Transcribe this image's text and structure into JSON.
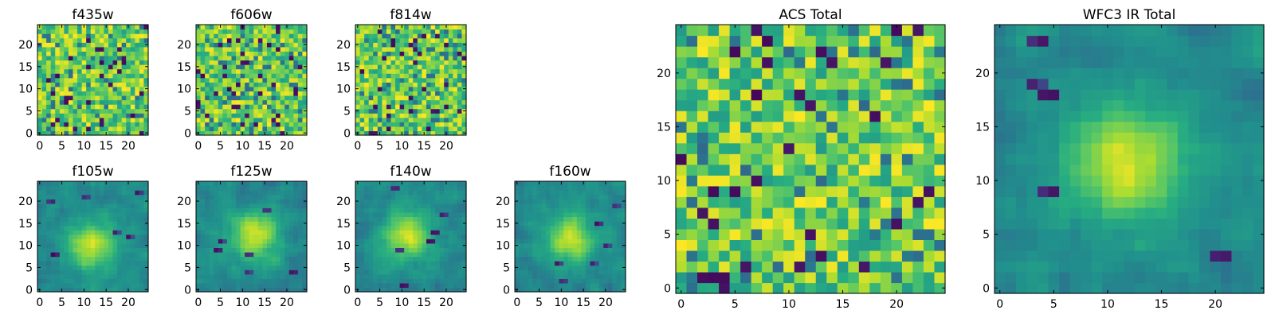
{
  "chart_data": [
    {
      "type": "heatmap",
      "title": "f435w",
      "colormap": "viridis",
      "grid": false,
      "size": [
        25,
        25
      ],
      "xlim": [
        -0.5,
        24.5
      ],
      "ylim": [
        -0.5,
        24.5
      ],
      "origin": "lower",
      "xticks": [
        0,
        5,
        10,
        15,
        20
      ],
      "xtick_labels": [
        "0",
        "5",
        "10",
        "15",
        "20"
      ],
      "yticks": [
        0,
        5,
        10,
        15,
        20
      ],
      "ytick_labels": [
        "0",
        "5",
        "10",
        "15",
        "20"
      ],
      "pattern": "noise",
      "seed": 11
    },
    {
      "type": "heatmap",
      "title": "f606w",
      "colormap": "viridis",
      "grid": false,
      "size": [
        25,
        25
      ],
      "xlim": [
        -0.5,
        24.5
      ],
      "ylim": [
        -0.5,
        24.5
      ],
      "origin": "lower",
      "xticks": [
        0,
        5,
        10,
        15,
        20
      ],
      "xtick_labels": [
        "0",
        "5",
        "10",
        "15",
        "20"
      ],
      "yticks": [
        0,
        5,
        10,
        15,
        20
      ],
      "ytick_labels": [
        "0",
        "5",
        "10",
        "15",
        "20"
      ],
      "pattern": "noise",
      "seed": 23
    },
    {
      "type": "heatmap",
      "title": "f814w",
      "colormap": "viridis",
      "grid": false,
      "size": [
        25,
        25
      ],
      "xlim": [
        -0.5,
        24.5
      ],
      "ylim": [
        -0.5,
        24.5
      ],
      "origin": "lower",
      "xticks": [
        0,
        5,
        10,
        15,
        20
      ],
      "xtick_labels": [
        "0",
        "5",
        "10",
        "15",
        "20"
      ],
      "yticks": [
        0,
        5,
        10,
        15,
        20
      ],
      "ytick_labels": [
        "0",
        "5",
        "10",
        "15",
        "20"
      ],
      "pattern": "noise",
      "seed": 37
    },
    {
      "type": "heatmap",
      "title": "f105w",
      "colormap": "viridis",
      "grid": false,
      "size": [
        25,
        25
      ],
      "xlim": [
        -0.5,
        24.5
      ],
      "ylim": [
        -0.5,
        24.5
      ],
      "origin": "lower",
      "xticks": [
        0,
        5,
        10,
        15,
        20
      ],
      "xtick_labels": [
        "0",
        "5",
        "10",
        "15",
        "20"
      ],
      "yticks": [
        0,
        5,
        10,
        15,
        20
      ],
      "ytick_labels": [
        "0",
        "5",
        "10",
        "15",
        "20"
      ],
      "pattern": "blob",
      "seed": 41
    },
    {
      "type": "heatmap",
      "title": "f125w",
      "colormap": "viridis",
      "grid": false,
      "size": [
        25,
        25
      ],
      "xlim": [
        -0.5,
        24.5
      ],
      "ylim": [
        -0.5,
        24.5
      ],
      "origin": "lower",
      "xticks": [
        0,
        5,
        10,
        15,
        20
      ],
      "xtick_labels": [
        "0",
        "5",
        "10",
        "15",
        "20"
      ],
      "yticks": [
        0,
        5,
        10,
        15,
        20
      ],
      "ytick_labels": [
        "0",
        "5",
        "10",
        "15",
        "20"
      ],
      "pattern": "blob",
      "seed": 53
    },
    {
      "type": "heatmap",
      "title": "f140w",
      "colormap": "viridis",
      "grid": false,
      "size": [
        25,
        25
      ],
      "xlim": [
        -0.5,
        24.5
      ],
      "ylim": [
        -0.5,
        24.5
      ],
      "origin": "lower",
      "xticks": [
        0,
        5,
        10,
        15,
        20
      ],
      "xtick_labels": [
        "0",
        "5",
        "10",
        "15",
        "20"
      ],
      "yticks": [
        0,
        5,
        10,
        15,
        20
      ],
      "ytick_labels": [
        "0",
        "5",
        "10",
        "15",
        "20"
      ],
      "pattern": "blob",
      "seed": 67
    },
    {
      "type": "heatmap",
      "title": "f160w",
      "colormap": "viridis",
      "grid": false,
      "size": [
        25,
        25
      ],
      "xlim": [
        -0.5,
        24.5
      ],
      "ylim": [
        -0.5,
        24.5
      ],
      "origin": "lower",
      "xticks": [
        0,
        5,
        10,
        15,
        20
      ],
      "xtick_labels": [
        "0",
        "5",
        "10",
        "15",
        "20"
      ],
      "yticks": [
        0,
        5,
        10,
        15,
        20
      ],
      "ytick_labels": [
        "0",
        "5",
        "10",
        "15",
        "20"
      ],
      "pattern": "blob",
      "seed": 79
    },
    {
      "type": "heatmap",
      "title": "ACS Total",
      "colormap": "viridis",
      "grid": false,
      "size": [
        25,
        25
      ],
      "xlim": [
        -0.5,
        24.5
      ],
      "ylim": [
        -0.5,
        24.5
      ],
      "origin": "lower",
      "xticks": [
        0,
        5,
        10,
        15,
        20
      ],
      "xtick_labels": [
        "0",
        "5",
        "10",
        "15",
        "20"
      ],
      "yticks": [
        0,
        5,
        10,
        15,
        20
      ],
      "ytick_labels": [
        "0",
        "5",
        "10",
        "15",
        "20"
      ],
      "pattern": "noise",
      "seed": 97
    },
    {
      "type": "heatmap",
      "title": "WFC3 IR Total",
      "colormap": "viridis",
      "grid": false,
      "size": [
        25,
        25
      ],
      "xlim": [
        -0.5,
        24.5
      ],
      "ylim": [
        -0.5,
        24.5
      ],
      "origin": "lower",
      "xticks": [
        0,
        5,
        10,
        15,
        20
      ],
      "xtick_labels": [
        "0",
        "5",
        "10",
        "15",
        "20"
      ],
      "yticks": [
        0,
        5,
        10,
        15,
        20
      ],
      "ytick_labels": [
        "0",
        "5",
        "10",
        "15",
        "20"
      ],
      "pattern": "blob",
      "seed": 113
    }
  ]
}
